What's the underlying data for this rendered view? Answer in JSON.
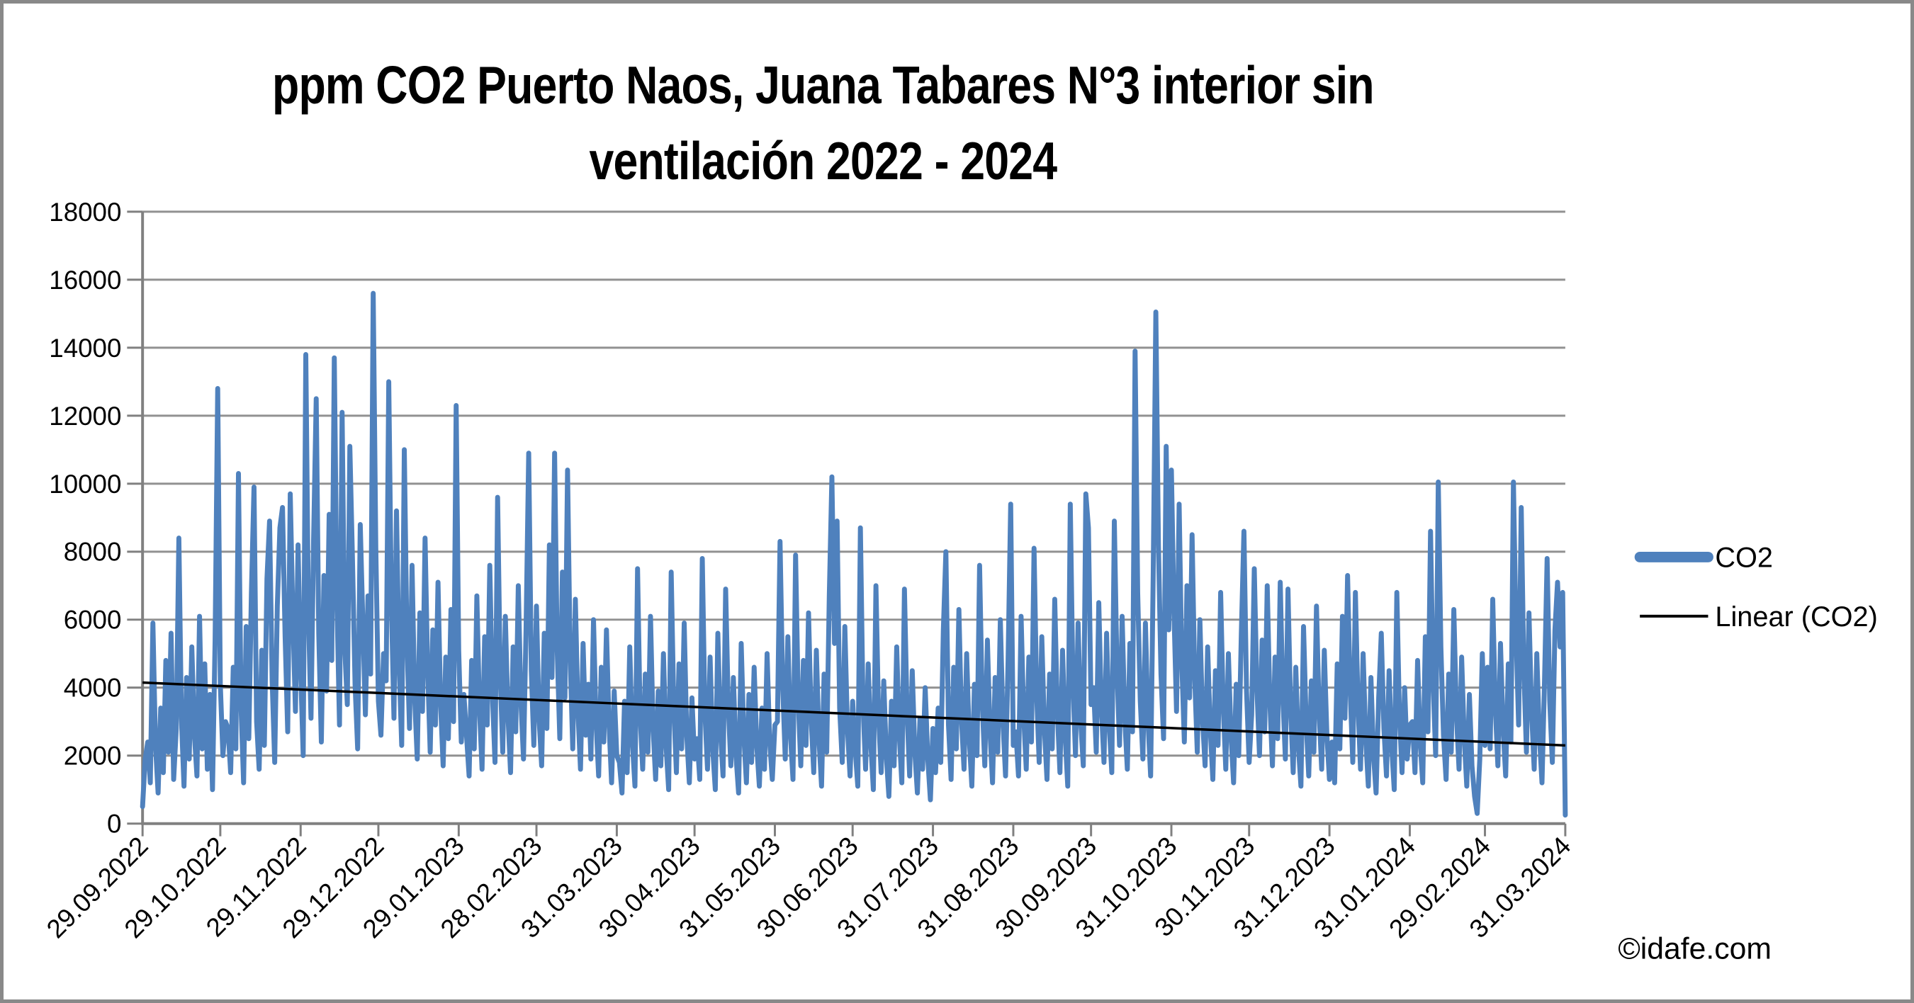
{
  "title": {
    "line1": "ppm CO2 Puerto Naos, Juana Tabares N°3 interior sin",
    "line2": "ventilación 2022 - 2024"
  },
  "copyright": "©idafe.com",
  "colors": {
    "series_blue": "#4F81BD",
    "trend_black": "#000000",
    "grid_gray": "#919191",
    "axis_gray": "#808080",
    "frame_gray": "#898989",
    "background": "#FFFFFF",
    "text": "#000000"
  },
  "chart_data": {
    "type": "line",
    "title": "ppm CO2 Puerto Naos, Juana Tabares N°3 interior sin ventilación 2022 - 2024",
    "xlabel": "",
    "ylabel": "",
    "ylim": [
      0,
      18000
    ],
    "ytick_step": 2000,
    "y_tick_labels": [
      "0",
      "2000",
      "4000",
      "6000",
      "8000",
      "10000",
      "12000",
      "14000",
      "16000",
      "18000"
    ],
    "grid": true,
    "legend_position": "right",
    "x_ticks": [
      {
        "label": "29.09.2022",
        "i": 0
      },
      {
        "label": "29.10.2022",
        "i": 30
      },
      {
        "label": "29.11.2022",
        "i": 61
      },
      {
        "label": "29.12.2022",
        "i": 91
      },
      {
        "label": "29.01.2023",
        "i": 122
      },
      {
        "label": "28.02.2023",
        "i": 152
      },
      {
        "label": "31.03.2023",
        "i": 183
      },
      {
        "label": "30.04.2023",
        "i": 213
      },
      {
        "label": "31.05.2023",
        "i": 244
      },
      {
        "label": "30.06.2023",
        "i": 274
      },
      {
        "label": "31.07.2023",
        "i": 305
      },
      {
        "label": "31.08.2023",
        "i": 336
      },
      {
        "label": "30.09.2023",
        "i": 366
      },
      {
        "label": "31.10.2023",
        "i": 397
      },
      {
        "label": "30.11.2023",
        "i": 427
      },
      {
        "label": "31.12.2023",
        "i": 458
      },
      {
        "label": "31.01.2024",
        "i": 489
      },
      {
        "label": "29.02.2024",
        "i": 518
      },
      {
        "label": "31.03.2024",
        "i": 549
      }
    ],
    "sampling": "approx. daily readings, 29.09.2022 to 31.03.2024, values in ppm CO2 estimated from plot",
    "series": [
      {
        "name": "CO2",
        "color": "#4F81BD",
        "values": [
          500,
          1900,
          2400,
          1200,
          5900,
          2300,
          900,
          3400,
          1500,
          4800,
          2100,
          5600,
          1300,
          2800,
          8400,
          3100,
          1100,
          4300,
          1900,
          5200,
          2600,
          1400,
          6100,
          2200,
          4700,
          1600,
          3800,
          1000,
          5400,
          12800,
          4100,
          2000,
          3000,
          2800,
          1500,
          4600,
          2200,
          10300,
          3400,
          1200,
          5800,
          2500,
          6800,
          9900,
          3000,
          1600,
          5100,
          2300,
          7200,
          8900,
          4200,
          1800,
          6400,
          8700,
          9300,
          5500,
          2700,
          9700,
          6100,
          3300,
          8200,
          4500,
          2000,
          13800,
          6200,
          3100,
          8400,
          12500,
          5600,
          2400,
          7300,
          3900,
          9100,
          4800,
          13700,
          6600,
          2900,
          12100,
          5200,
          3500,
          11100,
          7800,
          4100,
          2200,
          8800,
          5900,
          3200,
          6700,
          4400,
          15600,
          8100,
          3600,
          2600,
          5000,
          4200,
          13000,
          6500,
          3100,
          9200,
          4700,
          2300,
          11000,
          5400,
          2800,
          7600,
          3700,
          1900,
          6200,
          3300,
          8400,
          4600,
          2100,
          5700,
          2900,
          7100,
          3500,
          1700,
          4900,
          2500,
          6300,
          3000,
          12300,
          5100,
          2400,
          3800,
          2600,
          1400,
          4800,
          2200,
          6700,
          3400,
          1600,
          5500,
          2900,
          7600,
          3800,
          1800,
          9600,
          4400,
          2100,
          6100,
          3200,
          1500,
          5200,
          2700,
          7000,
          3600,
          1900,
          5800,
          10900,
          4500,
          2300,
          6400,
          3100,
          1700,
          5600,
          2800,
          8200,
          4300,
          10900,
          5100,
          2500,
          7400,
          3700,
          10400,
          4900,
          2200,
          6600,
          3300,
          1600,
          5300,
          2600,
          4100,
          1900,
          6000,
          3000,
          1400,
          4600,
          2400,
          5700,
          2900,
          1200,
          3900,
          2000,
          1800,
          900,
          3600,
          1500,
          5200,
          2400,
          1100,
          7500,
          3200,
          1600,
          4400,
          2100,
          6100,
          2800,
          1300,
          3900,
          1700,
          5000,
          2300,
          1000,
          7400,
          3400,
          1500,
          4700,
          2200,
          5900,
          2600,
          1200,
          3700,
          1900,
          2500,
          1300,
          7800,
          3300,
          1600,
          4900,
          2200,
          1000,
          5600,
          2700,
          1400,
          6900,
          3500,
          1700,
          4300,
          2000,
          900,
          5300,
          2600,
          1200,
          3800,
          1800,
          4600,
          2300,
          1100,
          3400,
          1600,
          5000,
          2400,
          1300,
          2900,
          3000,
          8300,
          4100,
          1900,
          5500,
          2600,
          1300,
          7900,
          3700,
          1700,
          4800,
          2300,
          6200,
          3100,
          1500,
          5100,
          2500,
          1100,
          4400,
          2100,
          6700,
          10200,
          5300,
          8900,
          3400,
          1800,
          5800,
          2800,
          1400,
          3600,
          2200,
          1100,
          8700,
          3500,
          1600,
          4700,
          2400,
          1000,
          7000,
          3200,
          1500,
          4200,
          2000,
          800,
          3600,
          1700,
          5200,
          2600,
          1200,
          6900,
          3300,
          1400,
          4500,
          2100,
          900,
          3100,
          1600,
          4000,
          1900,
          700,
          2800,
          1500,
          3400,
          1800,
          5700,
          8000,
          2900,
          1300,
          4600,
          2200,
          6300,
          3100,
          1600,
          5000,
          2500,
          1100,
          4100,
          2000,
          7600,
          3600,
          1700,
          5400,
          2700,
          1200,
          4300,
          2100,
          6000,
          3000,
          1400,
          4800,
          9400,
          2300,
          2700,
          1400,
          6100,
          3200,
          1600,
          4900,
          2400,
          8100,
          3800,
          1800,
          5500,
          2800,
          1300,
          4400,
          2200,
          6600,
          3300,
          1500,
          5100,
          2600,
          1100,
          9400,
          4200,
          2000,
          5900,
          3000,
          1700,
          9700,
          8700,
          3500,
          4000,
          2100,
          6500,
          3400,
          1800,
          5600,
          2900,
          1500,
          8900,
          4600,
          2300,
          6100,
          3100,
          1600,
          5300,
          2700,
          13900,
          6800,
          3600,
          1900,
          5900,
          3000,
          1400,
          7400,
          15050,
          8200,
          4400,
          2500,
          11100,
          5700,
          10400,
          6200,
          3300,
          9400,
          4800,
          2400,
          7000,
          3700,
          8500,
          4300,
          2100,
          6000,
          3100,
          1700,
          5200,
          2800,
          1300,
          4500,
          2300,
          6800,
          3500,
          1600,
          5000,
          2600,
          1200,
          4100,
          2000,
          5600,
          8600,
          3900,
          1800,
          3200,
          7500,
          4000,
          2000,
          5400,
          2700,
          7000,
          3600,
          1700,
          4900,
          2500,
          7100,
          3800,
          1900,
          6900,
          3400,
          1500,
          4600,
          2300,
          1100,
          5800,
          3000,
          1400,
          4200,
          2100,
          6400,
          3300,
          1600,
          5100,
          2600,
          1300,
          2400,
          1200,
          4700,
          2200,
          6100,
          3100,
          7300,
          3900,
          1800,
          6800,
          3500,
          1600,
          5000,
          2500,
          1100,
          4300,
          2000,
          900,
          3700,
          5600,
          2800,
          1400,
          4500,
          2300,
          1000,
          6800,
          3200,
          1500,
          4000,
          1900,
          2900,
          3000,
          1500,
          4800,
          2400,
          1200,
          5500,
          2700,
          8600,
          4100,
          2000,
          10050,
          5200,
          2600,
          1300,
          4400,
          2100,
          6300,
          3200,
          1600,
          4900,
          2500,
          1100,
          3800,
          1700,
          800,
          300,
          1900,
          5000,
          2300,
          4600,
          2200,
          6600,
          3400,
          1700,
          5300,
          2800,
          1400,
          4700,
          2400,
          10050,
          5600,
          2900,
          9300,
          4500,
          2100,
          6200,
          3300,
          1600,
          5000,
          2600,
          1200,
          4200,
          7800,
          3600,
          1800,
          5700,
          7100,
          5200,
          6800,
          250
        ]
      }
    ],
    "trendline": {
      "name": "Linear (CO2)",
      "color": "#000000",
      "start_value": 4150,
      "end_value": 2300
    }
  }
}
